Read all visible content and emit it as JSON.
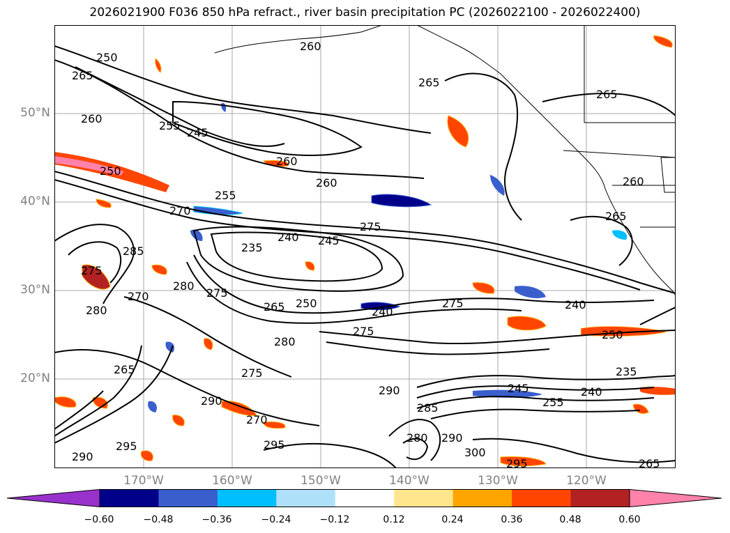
{
  "title": "2026021900 F036 850 hPa refract., river basin precipitation PC (2026022100 - 2026022400)",
  "lat_labels": [
    "50°N",
    "40°N",
    "30°N",
    "20°N"
  ],
  "lon_labels": [
    "170°W",
    "160°W",
    "150°W",
    "140°W",
    "130°W",
    "120°W"
  ],
  "contour_labels": [
    "260",
    "250",
    "265",
    "260",
    "255",
    "245",
    "260",
    "265",
    "265",
    "250",
    "255",
    "260",
    "260",
    "270",
    "275",
    "265",
    "235",
    "240",
    "245",
    "285",
    "275",
    "280",
    "270",
    "280",
    "275",
    "250",
    "265",
    "275",
    "240",
    "275",
    "240",
    "250",
    "280",
    "275",
    "265",
    "270",
    "290",
    "245",
    "255",
    "240",
    "235",
    "290",
    "285",
    "290",
    "295",
    "290",
    "295",
    "280",
    "300",
    "295",
    "265"
  ],
  "colorbar": {
    "colors": [
      "#9932cc",
      "#00008b",
      "#3a5fcd",
      "#00bfff",
      "#afe0fa",
      "#ffffff",
      "#ffe68c",
      "#ffa500",
      "#ff4500",
      "#b22222",
      "#ff82ab"
    ],
    "ticks": [
      "−0.60",
      "−0.48",
      "−0.36",
      "−0.24",
      "−0.12",
      "0.12",
      "0.24",
      "0.36",
      "0.48",
      "0.60"
    ]
  }
}
